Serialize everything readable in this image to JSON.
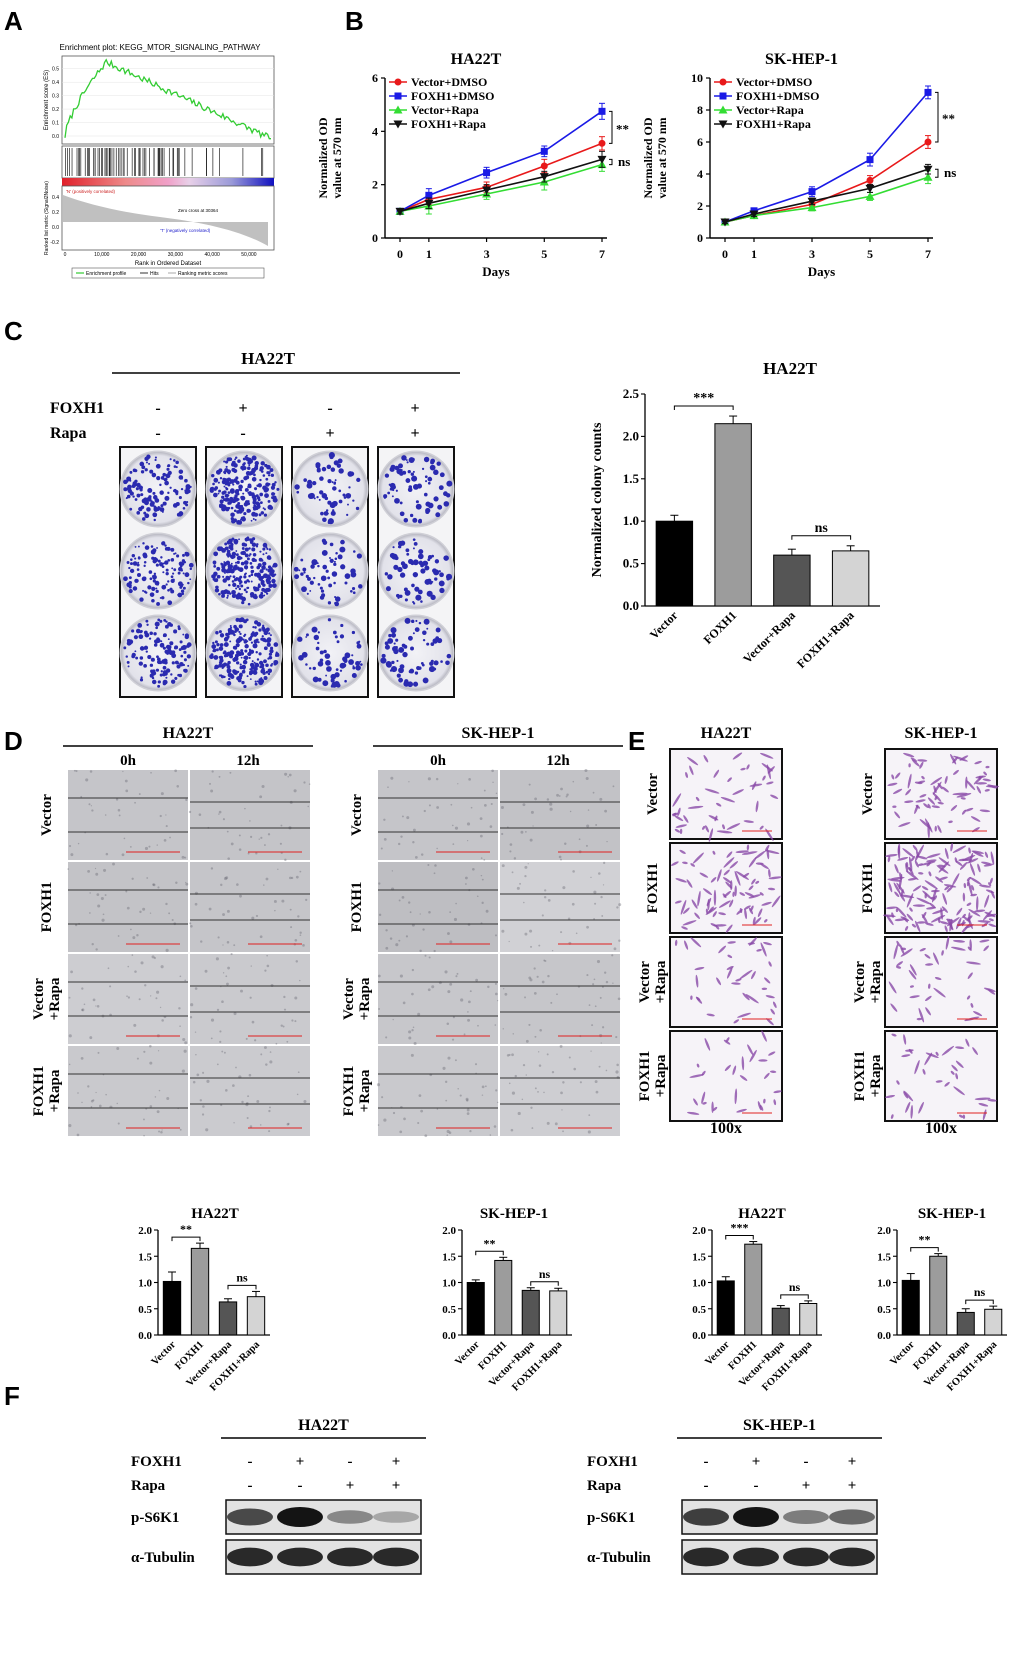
{
  "panel_labels": {
    "a": "A",
    "b": "B",
    "c": "C",
    "d": "D",
    "e": "E",
    "f": "F"
  },
  "gsea": {
    "title": "Enrichment plot: KEGG_MTOR_SIGNALING_PATHWAY",
    "es_label": "Enrichment score (ES)",
    "metric_label": "Ranked list metric (Signal2Noise)",
    "xlabel": "Rank in Ordered Dataset",
    "pos_label": "'N' (positively correlated)",
    "neg_label": "'T' (negatively correlated)",
    "zero_cross": "Zero cross at 30364",
    "legend": [
      "Enrichment profile",
      "Hits",
      "Ranking metric scores"
    ],
    "es_ticks": [
      "0.0",
      "0.1",
      "0.2",
      "0.3",
      "0.4",
      "0.5"
    ],
    "metric_ticks": [
      "0.4",
      "0.2",
      "0.0",
      "-0.2"
    ],
    "x_ticks": [
      "0",
      "10,000",
      "20,000",
      "30,000",
      "40,000",
      "50,000"
    ]
  },
  "panel_c": {
    "title": "HA22T",
    "row1_label": "FOXH1",
    "row2_label": "Rapa",
    "row1_signs": [
      "-",
      "+",
      "-",
      "+"
    ],
    "row2_signs": [
      "-",
      "-",
      "+",
      "+"
    ]
  },
  "panel_d": {
    "cells": [
      {
        "title": "HA22T",
        "time0": "0h",
        "time12": "12h"
      },
      {
        "title": "SK-HEP-1",
        "time0": "0h",
        "time12": "12h"
      }
    ],
    "row_labels": [
      [
        "Vector"
      ],
      [
        "FOXH1"
      ],
      [
        "Vector",
        "+Rapa"
      ],
      [
        "FOXH1",
        "+Rapa"
      ]
    ]
  },
  "panel_e": {
    "cells": [
      {
        "title": "HA22T",
        "mag": "100x"
      },
      {
        "title": "SK-HEP-1",
        "mag": "100x"
      }
    ],
    "row_labels": [
      [
        "Vector"
      ],
      [
        "FOXH1"
      ],
      [
        "Vector",
        "+Rapa"
      ],
      [
        "FOXH1",
        "+Rapa"
      ]
    ]
  },
  "panel_f": {
    "blots": [
      {
        "title": "HA22T",
        "row1_label": "FOXH1",
        "row2_label": "Rapa",
        "row1_signs": [
          "-",
          "+",
          "-",
          "+"
        ],
        "row2_signs": [
          "-",
          "-",
          "+",
          "+"
        ],
        "band_labels": [
          "p-S6K1",
          "α-Tubulin"
        ],
        "ps6k1_intensity": [
          0.75,
          1.0,
          0.45,
          0.3
        ],
        "tubulin_intensity": [
          0.9,
          0.9,
          0.9,
          0.9
        ]
      },
      {
        "title": "SK-HEP-1",
        "row1_label": "FOXH1",
        "row2_label": "Rapa",
        "row1_signs": [
          "-",
          "+",
          "-",
          "+"
        ],
        "row2_signs": [
          "-",
          "-",
          "+",
          "+"
        ],
        "band_labels": [
          "p-S6K1",
          "α-Tubulin"
        ],
        "ps6k1_intensity": [
          0.8,
          1.0,
          0.5,
          0.6
        ],
        "tubulin_intensity": [
          0.9,
          0.9,
          0.9,
          0.9
        ]
      }
    ]
  },
  "colors": {
    "gsea_curve": "#33cc33",
    "dmso_vector": "#e8191a",
    "dmso_foxh1": "#1a1ae6",
    "rapa_vector": "#33dd33",
    "rapa_foxh1": "#111111",
    "bar_vector": "#000000",
    "bar_foxh1": "#9c9c9c",
    "bar_vector_rapa": "#555555",
    "bar_foxh1_rapa": "#d4d4d4",
    "colony_stain": "#2a2ab0",
    "transwell_stain": "#8a4aa8"
  },
  "chart_data": [
    {
      "type": "line",
      "title": "HA22T",
      "xlabel": "Days",
      "ylabel": "Normalized OD value at 570 nm",
      "x": [
        0,
        1,
        3,
        5,
        7
      ],
      "xlim": [
        0,
        7
      ],
      "ylim": [
        0,
        6
      ],
      "yticks": [
        0,
        2,
        4,
        6
      ],
      "legend_position": "top-left",
      "series": [
        {
          "name": "Vector+DMSO",
          "values": [
            1.0,
            1.45,
            1.9,
            2.7,
            3.55
          ],
          "errors": [
            0.1,
            0.2,
            0.2,
            0.25,
            0.25
          ]
        },
        {
          "name": "FOXH1+DMSO",
          "values": [
            1.0,
            1.6,
            2.45,
            3.25,
            4.75
          ],
          "errors": [
            0.1,
            0.25,
            0.2,
            0.2,
            0.3
          ]
        },
        {
          "name": "Vector+Rapa",
          "values": [
            1.0,
            1.2,
            1.65,
            2.1,
            2.75
          ],
          "errors": [
            0.1,
            0.3,
            0.2,
            0.3,
            0.25
          ]
        },
        {
          "name": "FOXH1+Rapa",
          "values": [
            1.0,
            1.3,
            1.8,
            2.3,
            2.95
          ],
          "errors": [
            0.1,
            0.2,
            0.2,
            0.2,
            0.3
          ]
        }
      ],
      "annotations": [
        "**",
        "ns"
      ]
    },
    {
      "type": "line",
      "title": "SK-HEP-1",
      "xlabel": "Days",
      "ylabel": "Normalized OD value at 570 nm",
      "x": [
        0,
        1,
        3,
        5,
        7
      ],
      "xlim": [
        0,
        7
      ],
      "ylim": [
        0,
        10
      ],
      "yticks": [
        0,
        2,
        4,
        6,
        8,
        10
      ],
      "legend_position": "top-left",
      "series": [
        {
          "name": "Vector+DMSO",
          "values": [
            1.0,
            1.4,
            2.1,
            3.6,
            6.0
          ],
          "errors": [
            0.1,
            0.15,
            0.2,
            0.3,
            0.4
          ]
        },
        {
          "name": "FOXH1+DMSO",
          "values": [
            1.0,
            1.7,
            2.9,
            4.9,
            9.1
          ],
          "errors": [
            0.1,
            0.15,
            0.3,
            0.4,
            0.4
          ]
        },
        {
          "name": "Vector+Rapa",
          "values": [
            1.0,
            1.4,
            1.9,
            2.6,
            3.8
          ],
          "errors": [
            0.1,
            0.15,
            0.2,
            0.25,
            0.4
          ]
        },
        {
          "name": "FOXH1+Rapa",
          "values": [
            1.0,
            1.5,
            2.3,
            3.1,
            4.3
          ],
          "errors": [
            0.1,
            0.15,
            0.2,
            0.25,
            0.3
          ]
        }
      ],
      "annotations": [
        "**",
        "ns"
      ]
    },
    {
      "type": "bar",
      "title": "HA22T",
      "ylabel": "Normalized colony counts",
      "categories": [
        "Vector",
        "FOXH1",
        "Vector+Rapa",
        "FOXH1+Rapa"
      ],
      "values": [
        1.0,
        2.15,
        0.6,
        0.65
      ],
      "errors": [
        0.07,
        0.09,
        0.07,
        0.06
      ],
      "ylim": [
        0,
        2.5
      ],
      "yticks": [
        0.0,
        0.5,
        1.0,
        1.5,
        2.0,
        2.5
      ],
      "significance": [
        {
          "between": [
            0,
            1
          ],
          "label": "***"
        },
        {
          "between": [
            2,
            3
          ],
          "label": "ns"
        }
      ]
    },
    {
      "type": "bar",
      "title": "HA22T",
      "categories": [
        "Vector",
        "FOXH1",
        "Vector+Rapa",
        "FOXH1+Rapa"
      ],
      "values": [
        1.02,
        1.65,
        0.63,
        0.73
      ],
      "errors": [
        0.18,
        0.1,
        0.06,
        0.1
      ],
      "ylim": [
        0,
        2.0
      ],
      "yticks": [
        0.0,
        0.5,
        1.0,
        1.5,
        2.0
      ],
      "significance": [
        {
          "between": [
            0,
            1
          ],
          "label": "**"
        },
        {
          "between": [
            2,
            3
          ],
          "label": "ns"
        }
      ]
    },
    {
      "type": "bar",
      "title": "SK-HEP-1",
      "categories": [
        "Vector",
        "FOXH1",
        "Vector+Rapa",
        "FOXH1+Rapa"
      ],
      "values": [
        1.0,
        1.42,
        0.85,
        0.84
      ],
      "errors": [
        0.05,
        0.06,
        0.05,
        0.05
      ],
      "ylim": [
        0,
        2.0
      ],
      "yticks": [
        0.0,
        0.5,
        1.0,
        1.5,
        2.0
      ],
      "significance": [
        {
          "between": [
            0,
            1
          ],
          "label": "**"
        },
        {
          "between": [
            2,
            3
          ],
          "label": "ns"
        }
      ]
    },
    {
      "type": "bar",
      "title": "HA22T",
      "categories": [
        "Vector",
        "FOXH1",
        "Vector+Rapa",
        "FOXH1+Rapa"
      ],
      "values": [
        1.03,
        1.73,
        0.51,
        0.6
      ],
      "errors": [
        0.08,
        0.05,
        0.05,
        0.05
      ],
      "ylim": [
        0,
        2.0
      ],
      "yticks": [
        0.0,
        0.5,
        1.0,
        1.5,
        2.0
      ],
      "significance": [
        {
          "between": [
            0,
            1
          ],
          "label": "***"
        },
        {
          "between": [
            2,
            3
          ],
          "label": "ns"
        }
      ]
    },
    {
      "type": "bar",
      "title": "SK-HEP-1",
      "categories": [
        "Vector",
        "FOXH1",
        "Vector+Rapa",
        "FOXH1+Rapa"
      ],
      "values": [
        1.04,
        1.5,
        0.43,
        0.49
      ],
      "errors": [
        0.13,
        0.05,
        0.07,
        0.06
      ],
      "ylim": [
        0,
        2.0
      ],
      "yticks": [
        0.0,
        0.5,
        1.0,
        1.5,
        2.0
      ],
      "significance": [
        {
          "between": [
            0,
            1
          ],
          "label": "**"
        },
        {
          "between": [
            2,
            3
          ],
          "label": "ns"
        }
      ]
    }
  ]
}
